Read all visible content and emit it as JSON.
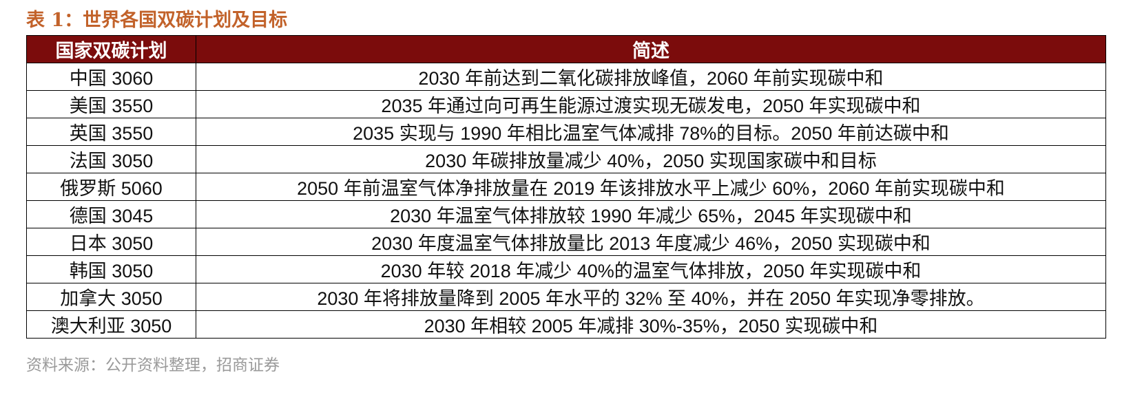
{
  "caption": "表 1：世界各国双碳计划及目标",
  "table": {
    "headers": [
      "国家双碳计划",
      "简述"
    ],
    "rows": [
      {
        "plan": "中国 3060",
        "desc": "2030 年前达到二氧化碳排放峰值，2060 年前实现碳中和"
      },
      {
        "plan": "美国 3550",
        "desc": "2035 年通过向可再生能源过渡实现无碳发电，2050 年实现碳中和"
      },
      {
        "plan": "英国 3550",
        "desc": "2035 实现与 1990 年相比温室气体减排 78%的目标。2050 年前达碳中和"
      },
      {
        "plan": "法国 3050",
        "desc": "2030 年碳排放量减少 40%，2050 实现国家碳中和目标"
      },
      {
        "plan": "俄罗斯 5060",
        "desc": "2050 年前温室气体净排放量在 2019 年该排放水平上减少 60%，2060 年前实现碳中和"
      },
      {
        "plan": "德国 3045",
        "desc": "2030 年温室气体排放较 1990 年减少 65%，2045 年实现碳中和"
      },
      {
        "plan": "日本 3050",
        "desc": "2030 年度温室气体排放量比 2013 年度减少 46%，2050 实现碳中和"
      },
      {
        "plan": "韩国 3050",
        "desc": "2030 年较 2018 年减少 40%的温室气体排放，2050 年实现碳中和"
      },
      {
        "plan": "加拿大 3050",
        "desc": "2030 年将排放量降到 2005 年水平的 32% 至 40%，并在 2050 年实现净零排放。"
      },
      {
        "plan": "澳大利亚 3050",
        "desc": "2030 年相较 2005 年减排 30%-35%，2050 实现碳中和"
      }
    ]
  },
  "source": "资料来源：公开资料整理，招商证券",
  "colors": {
    "header_bg": "#7b0c0c",
    "caption": "#c2622a",
    "source": "#9a9a9a"
  }
}
